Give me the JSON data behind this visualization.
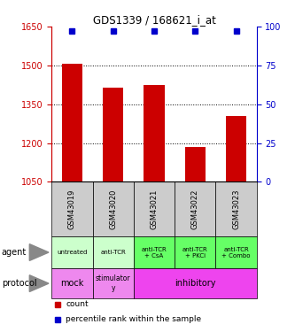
{
  "title": "GDS1339 / 168621_i_at",
  "samples": [
    "GSM43019",
    "GSM43020",
    "GSM43021",
    "GSM43022",
    "GSM43023"
  ],
  "counts": [
    1505,
    1415,
    1425,
    1185,
    1305
  ],
  "percentiles": [
    99,
    99,
    99,
    99,
    99
  ],
  "ylim_left": [
    1050,
    1650
  ],
  "ylim_right": [
    0,
    100
  ],
  "yticks_left": [
    1050,
    1200,
    1350,
    1500,
    1650
  ],
  "yticks_right": [
    0,
    25,
    50,
    75,
    100
  ],
  "bar_color": "#cc0000",
  "dot_color": "#0000cc",
  "agent_labels": [
    "untreated",
    "anti-TCR",
    "anti-TCR\n+ CsA",
    "anti-TCR\n+ PKCi",
    "anti-TCR\n+ Combo"
  ],
  "agent_colors": [
    "#ccffcc",
    "#ccffcc",
    "#66ff66",
    "#66ff66",
    "#66ff66"
  ],
  "protocol_mock_color": "#ee88ee",
  "protocol_stim_color": "#ee88ee",
  "protocol_inhib_color": "#ee44ee",
  "sample_bg_color": "#cccccc",
  "left_axis_color": "#cc0000",
  "right_axis_color": "#0000cc",
  "grid_color": "#000000",
  "left_label_color": "#555555",
  "arrow_color": "#888888"
}
